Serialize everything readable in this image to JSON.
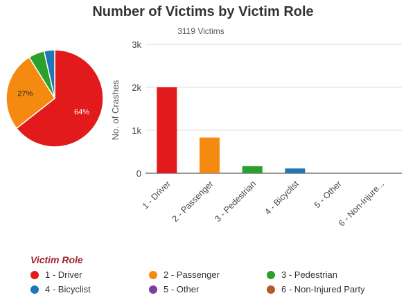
{
  "title": "Number of Victims by Victim Role",
  "subtitle": "3119 Victims",
  "chart_data": [
    {
      "type": "pie",
      "slices": [
        {
          "name": "1 - Driver",
          "value": 2000,
          "label": "64%",
          "color": "#e31a1c"
        },
        {
          "name": "2 - Passenger",
          "value": 830,
          "label": "27%",
          "color": "#f58a10"
        },
        {
          "name": "3 - Pedestrian",
          "value": 165,
          "label": "",
          "color": "#2ca02c"
        },
        {
          "name": "4 - Bicyclist",
          "value": 110,
          "label": "",
          "color": "#1f77b4"
        },
        {
          "name": "5 - Other",
          "value": 0,
          "label": "",
          "color": "#7b3fa0"
        },
        {
          "name": "6 - Non-Injured Party",
          "value": 0,
          "label": "",
          "color": "#b5582a"
        }
      ]
    },
    {
      "type": "bar",
      "categories": [
        "1 - Driver",
        "2 - Passenger",
        "3 - Pedestrian",
        "4 - Bicyclist",
        "5 - Other",
        "6 - Non-Injure..."
      ],
      "values": [
        2000,
        830,
        165,
        110,
        0,
        0
      ],
      "colors": [
        "#e31a1c",
        "#f58a10",
        "#2ca02c",
        "#1f77b4",
        "#7b3fa0",
        "#b5582a"
      ],
      "ylabel": "No. of Crashes",
      "ylim": [
        0,
        3000
      ],
      "yticks": [
        0,
        1000,
        2000,
        3000
      ],
      "ytick_labels": [
        "0",
        "1k",
        "2k",
        "3k"
      ],
      "grid": true
    }
  ],
  "legend": {
    "title": "Victim Role",
    "items": [
      {
        "label": "1 - Driver",
        "color": "#e31a1c"
      },
      {
        "label": "2 - Passenger",
        "color": "#f58a10"
      },
      {
        "label": "3 - Pedestrian",
        "color": "#2ca02c"
      },
      {
        "label": "4 - Bicyclist",
        "color": "#1f77b4"
      },
      {
        "label": "5 - Other",
        "color": "#7b3fa0"
      },
      {
        "label": "6 - Non-Injured Party",
        "color": "#b5582a"
      }
    ]
  }
}
